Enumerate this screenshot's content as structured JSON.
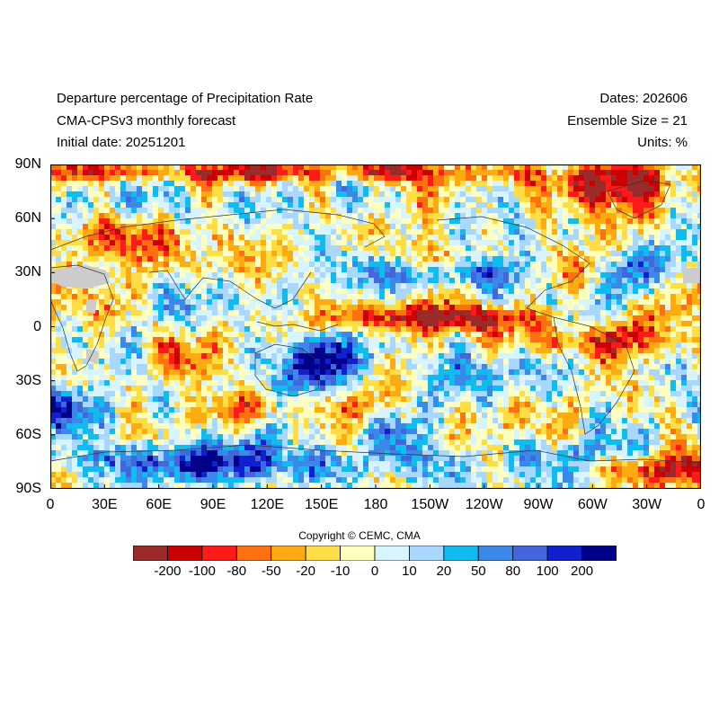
{
  "header": {
    "title": "Departure percentage of Precipitation Rate",
    "model": "CMA-CPSv3 monthly forecast",
    "initial_date": "Initial date: 20251201",
    "dates": "Dates: 202606",
    "ensemble": "Ensemble Size = 21",
    "units": "Units: %"
  },
  "map": {
    "lat_labels": [
      "90N",
      "60N",
      "30N",
      "0",
      "30S",
      "60S",
      "90S"
    ],
    "lon_labels": [
      "0",
      "30E",
      "60E",
      "90E",
      "120E",
      "150E",
      "180",
      "150W",
      "120W",
      "90W",
      "60W",
      "30W",
      "0"
    ],
    "projection": "equirectangular",
    "lon_range": [
      0,
      360
    ],
    "lat_range": [
      -90,
      90
    ],
    "missing_color": "#cccccc",
    "coastline_color": "#333333"
  },
  "copyright": "Copyright © CEMC, CMA",
  "colorbar": {
    "colors": [
      "#9b2a2a",
      "#cc0000",
      "#ff1a1a",
      "#ff7010",
      "#ffaa10",
      "#ffdd44",
      "#ffffc0",
      "#d8f4ff",
      "#a8d8ff",
      "#10bbf0",
      "#3a88e8",
      "#4466dd",
      "#1020cc",
      "#000088"
    ],
    "labels": [
      "-200",
      "-100",
      "-80",
      "-50",
      "-20",
      "-10",
      "0",
      "10",
      "20",
      "50",
      "80",
      "100",
      "200"
    ]
  }
}
